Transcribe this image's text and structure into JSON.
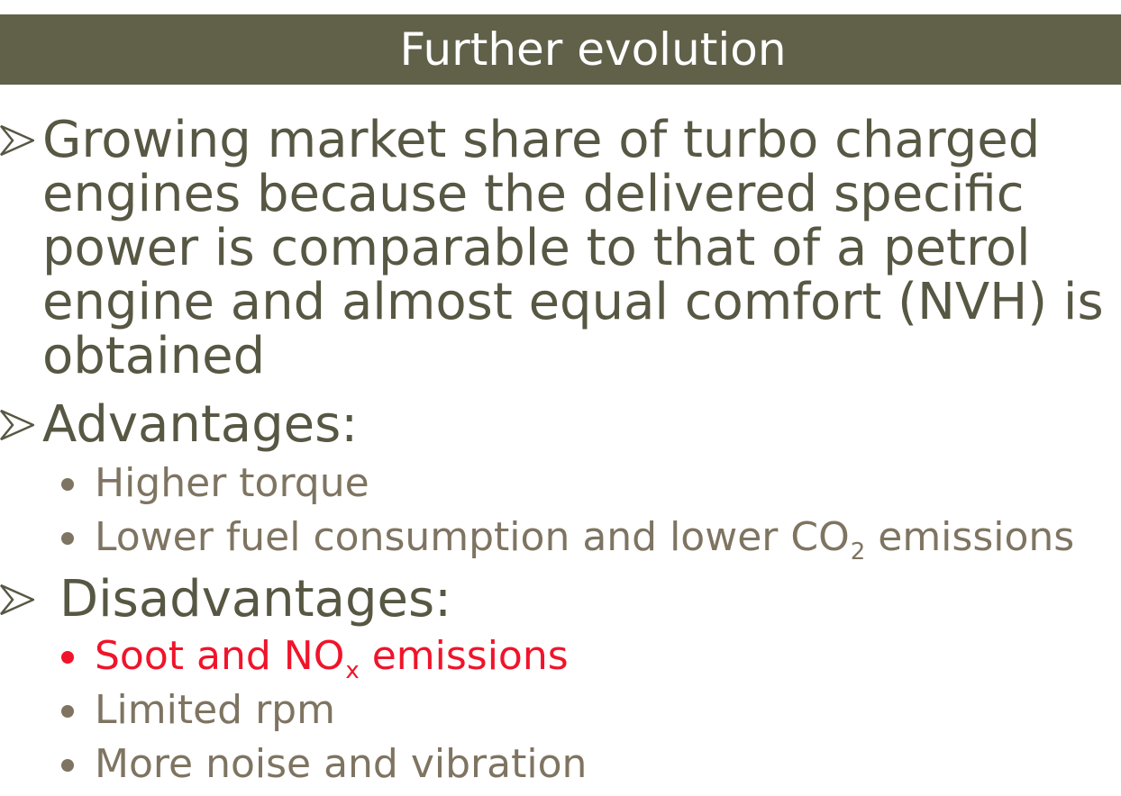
{
  "title": "Further evolution",
  "bullets": [
    {
      "lines": [
        "Growing market share of turbo charged",
        "engines because the delivered  specific",
        "power is comparable to that of a  petrol",
        "engine and almost equal comfort (NVH) is",
        "obtained"
      ]
    },
    {
      "label": "Advantages:"
    },
    {
      "label": "Disadvantages:"
    }
  ],
  "advantages": [
    {
      "text": "Higher torque"
    },
    {
      "text_before": "Lower fuel consumption and lower CO",
      "sub": "2",
      "text_after": " emissions"
    }
  ],
  "disadvantages": [
    {
      "text_before": "Soot and NO",
      "sub": "x",
      "text_after": " emissions",
      "color": "#f0142a"
    },
    {
      "text": "Limited rpm"
    },
    {
      "text": "More noise and vibration"
    }
  ],
  "colors": {
    "title_bar": "#616049",
    "main_text": "#575743",
    "sub_text": "#7e7461",
    "highlight": "#f0142a"
  },
  "icons": {
    "bullet_level1": "arrow-right-icon",
    "bullet_level2": "dot-icon"
  }
}
